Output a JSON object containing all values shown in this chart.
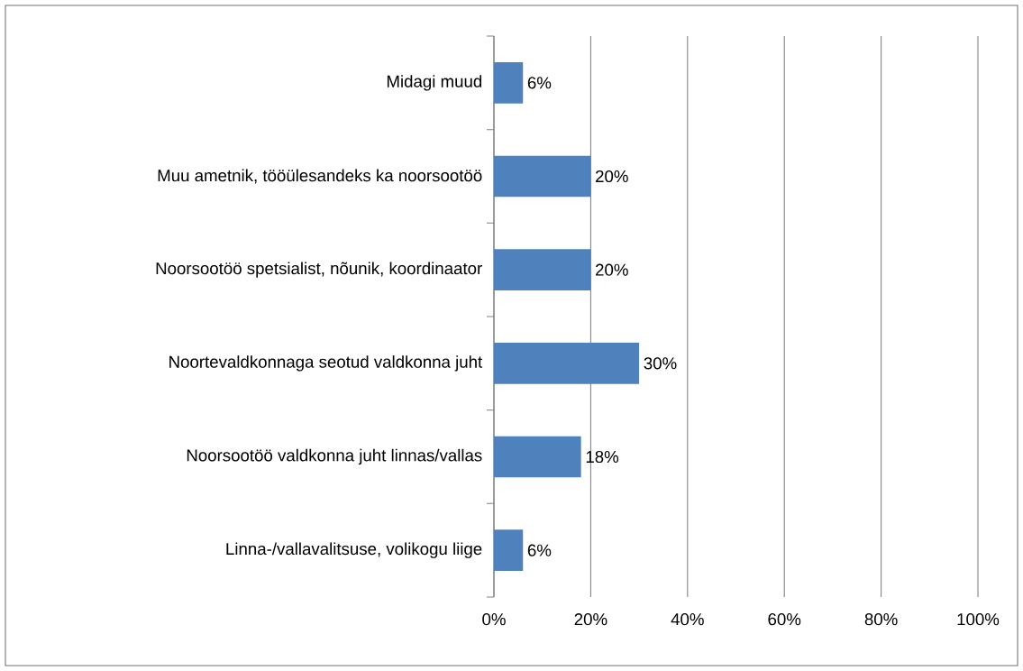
{
  "chart_data": {
    "type": "bar",
    "orientation": "horizontal",
    "categories": [
      "Midagi muud",
      "Muu ametnik, tööülesandeks ka noorsootöö",
      "Noorsootöö spetsialist, nõunik, koordinaator",
      "Noortevaldkonnaga seotud valdkonna juht",
      "Noorsootöö valdkonna juht linnas/vallas",
      "Linna-/vallavalitsuse, volikogu liige"
    ],
    "values": [
      6,
      20,
      20,
      30,
      18,
      6
    ],
    "value_labels": [
      "6%",
      "20%",
      "20%",
      "30%",
      "18%",
      "6%"
    ],
    "color": "#4f81bd",
    "xlim": [
      0,
      100
    ],
    "xticks": [
      {
        "value": 0,
        "label": "0%"
      },
      {
        "value": 20,
        "label": "20%"
      },
      {
        "value": 40,
        "label": "40%"
      },
      {
        "value": 60,
        "label": "60%"
      },
      {
        "value": 80,
        "label": "80%"
      },
      {
        "value": 100,
        "label": "100%"
      }
    ],
    "grid": "x"
  }
}
